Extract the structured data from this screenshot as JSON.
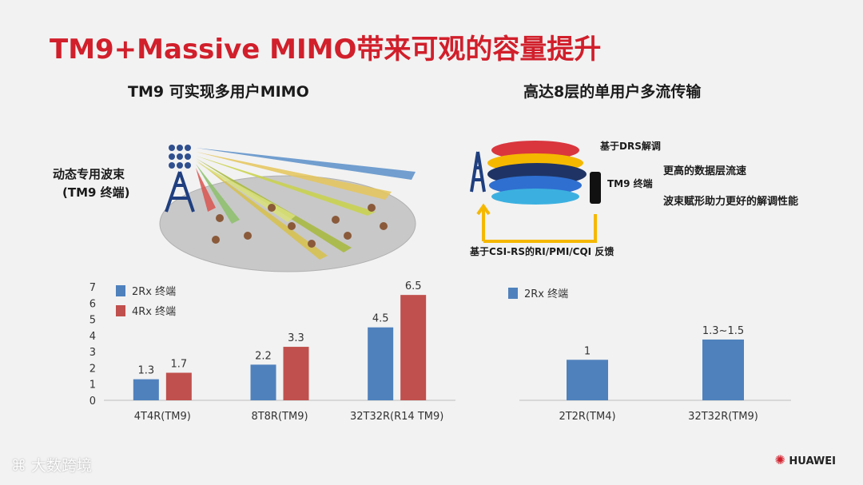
{
  "slide": {
    "title": "TM9+Massive MIMO带来可观的容量提升",
    "left_heading": "TM9 可实现多用户MIMO",
    "right_heading": "高达8层的单用户多流传输",
    "beam_label_line1": "动态专用波束",
    "beam_label_line2": "(TM9 终端)",
    "drs_label": "基于DRS解调",
    "tm9_terminal_label": "TM9 终端",
    "feature_1": "更高的数据层流速",
    "feature_2": "波束赋形助力更好的解调性能",
    "feedback_label": "基于CSI-RS的RI/PMI/CQI 反馈",
    "brand": "HUAWEI",
    "watermark": "大数跨境"
  },
  "colors": {
    "title_red": "#d11f2b",
    "blue_bar": "#4f81bd",
    "red_bar": "#c0504d",
    "arrow_yellow": "#f5b800"
  },
  "chart_data": [
    {
      "type": "bar",
      "categories": [
        "4T4R(TM9)",
        "8T8R(TM9)",
        "32T32R(R14 TM9)"
      ],
      "series": [
        {
          "name": "2Rx 终端",
          "values": [
            1.3,
            2.2,
            4.5
          ],
          "labels": [
            "1.3",
            "2.2",
            "4.5"
          ]
        },
        {
          "name": "4Rx 终端",
          "values": [
            1.7,
            3.3,
            6.5
          ],
          "labels": [
            "1.7",
            "3.3",
            "6.5"
          ]
        }
      ],
      "ylim": [
        0,
        7
      ],
      "yticks": [
        "0",
        "1",
        "2",
        "3",
        "4",
        "5",
        "6",
        "7"
      ],
      "grid": false,
      "legend": "top-left"
    },
    {
      "type": "bar",
      "categories": [
        "2T2R(TM4)",
        "32T32R(TM9)"
      ],
      "series": [
        {
          "name": "2Rx 终端",
          "values": [
            1,
            1.5
          ],
          "labels": [
            "1",
            "1.3~1.5"
          ]
        }
      ],
      "ylim": [
        0,
        2.8
      ],
      "grid": false,
      "legend": "top-left"
    }
  ]
}
